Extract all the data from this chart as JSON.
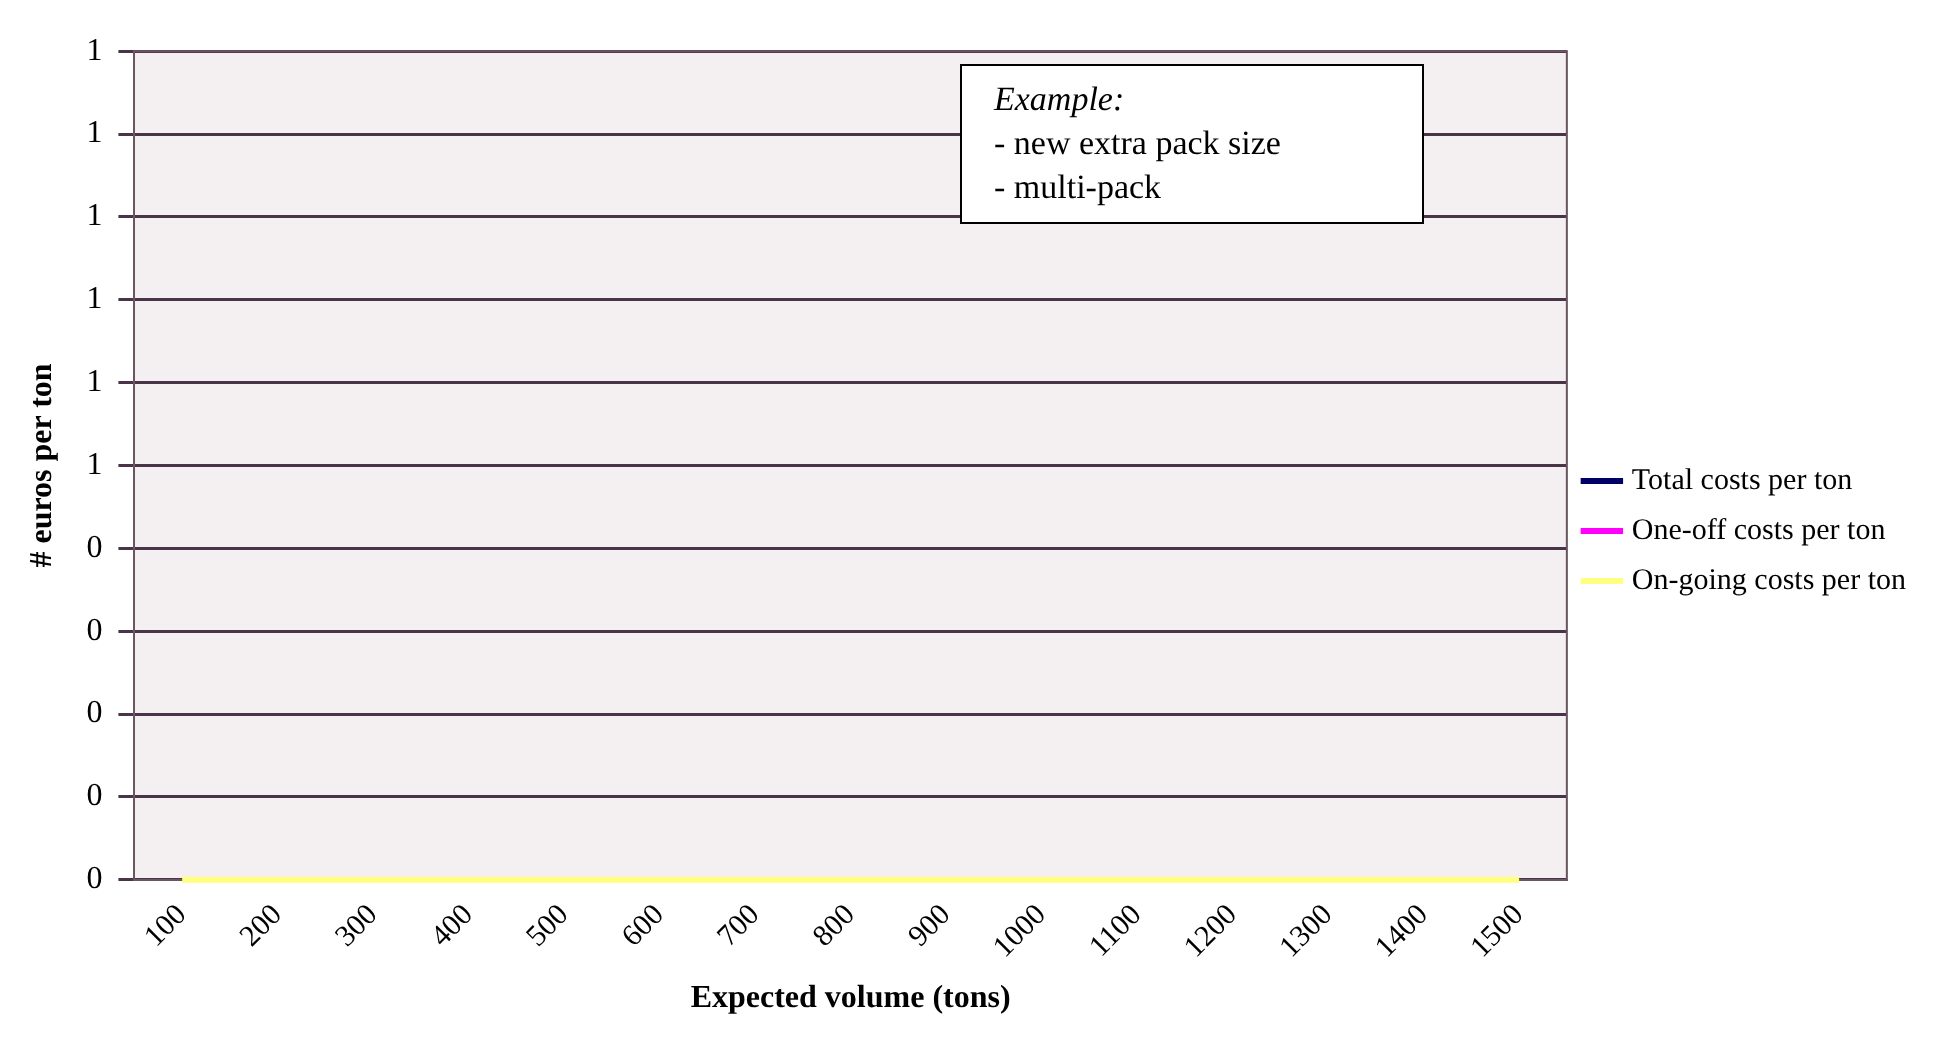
{
  "chart_data": {
    "type": "line",
    "xlabel": "Expected volume (tons)",
    "ylabel": "# euros per ton",
    "categories": [
      "100",
      "200",
      "300",
      "400",
      "500",
      "600",
      "700",
      "800",
      "900",
      "1000",
      "1100",
      "1200",
      "1300",
      "1400",
      "1500"
    ],
    "series": [
      {
        "name": "Total costs per ton",
        "color": "#000066",
        "values": [
          null,
          null,
          null,
          null,
          null,
          null,
          null,
          null,
          null,
          null,
          null,
          null,
          null,
          null,
          null
        ]
      },
      {
        "name": "One-off costs per ton",
        "color": "#ff00ff",
        "values": [
          null,
          null,
          null,
          null,
          null,
          null,
          null,
          null,
          null,
          null,
          null,
          null,
          null,
          null,
          null
        ]
      },
      {
        "name": "On-going costs per ton",
        "color": "#ffff80",
        "values": [
          0,
          0,
          0,
          0,
          0,
          0,
          0,
          0,
          0,
          0,
          0,
          0,
          0,
          0,
          0
        ]
      }
    ],
    "ylim": [
      0,
      1
    ],
    "yticks": [
      {
        "value": 0,
        "label": "0"
      },
      {
        "value": 0.1,
        "label": "0"
      },
      {
        "value": 0.2,
        "label": "0"
      },
      {
        "value": 0.3,
        "label": "0"
      },
      {
        "value": 0.4,
        "label": "0"
      },
      {
        "value": 0.5,
        "label": "1"
      },
      {
        "value": 0.6,
        "label": "1"
      },
      {
        "value": 0.7,
        "label": "1"
      },
      {
        "value": 0.8,
        "label": "1"
      },
      {
        "value": 0.9,
        "label": "1"
      },
      {
        "value": 1,
        "label": "1"
      }
    ],
    "grid": "y",
    "legend": "right",
    "marker": "none",
    "line_style": "solid",
    "annotations": [
      "Example:",
      "- new extra pack size",
      "- multi-pack"
    ]
  }
}
